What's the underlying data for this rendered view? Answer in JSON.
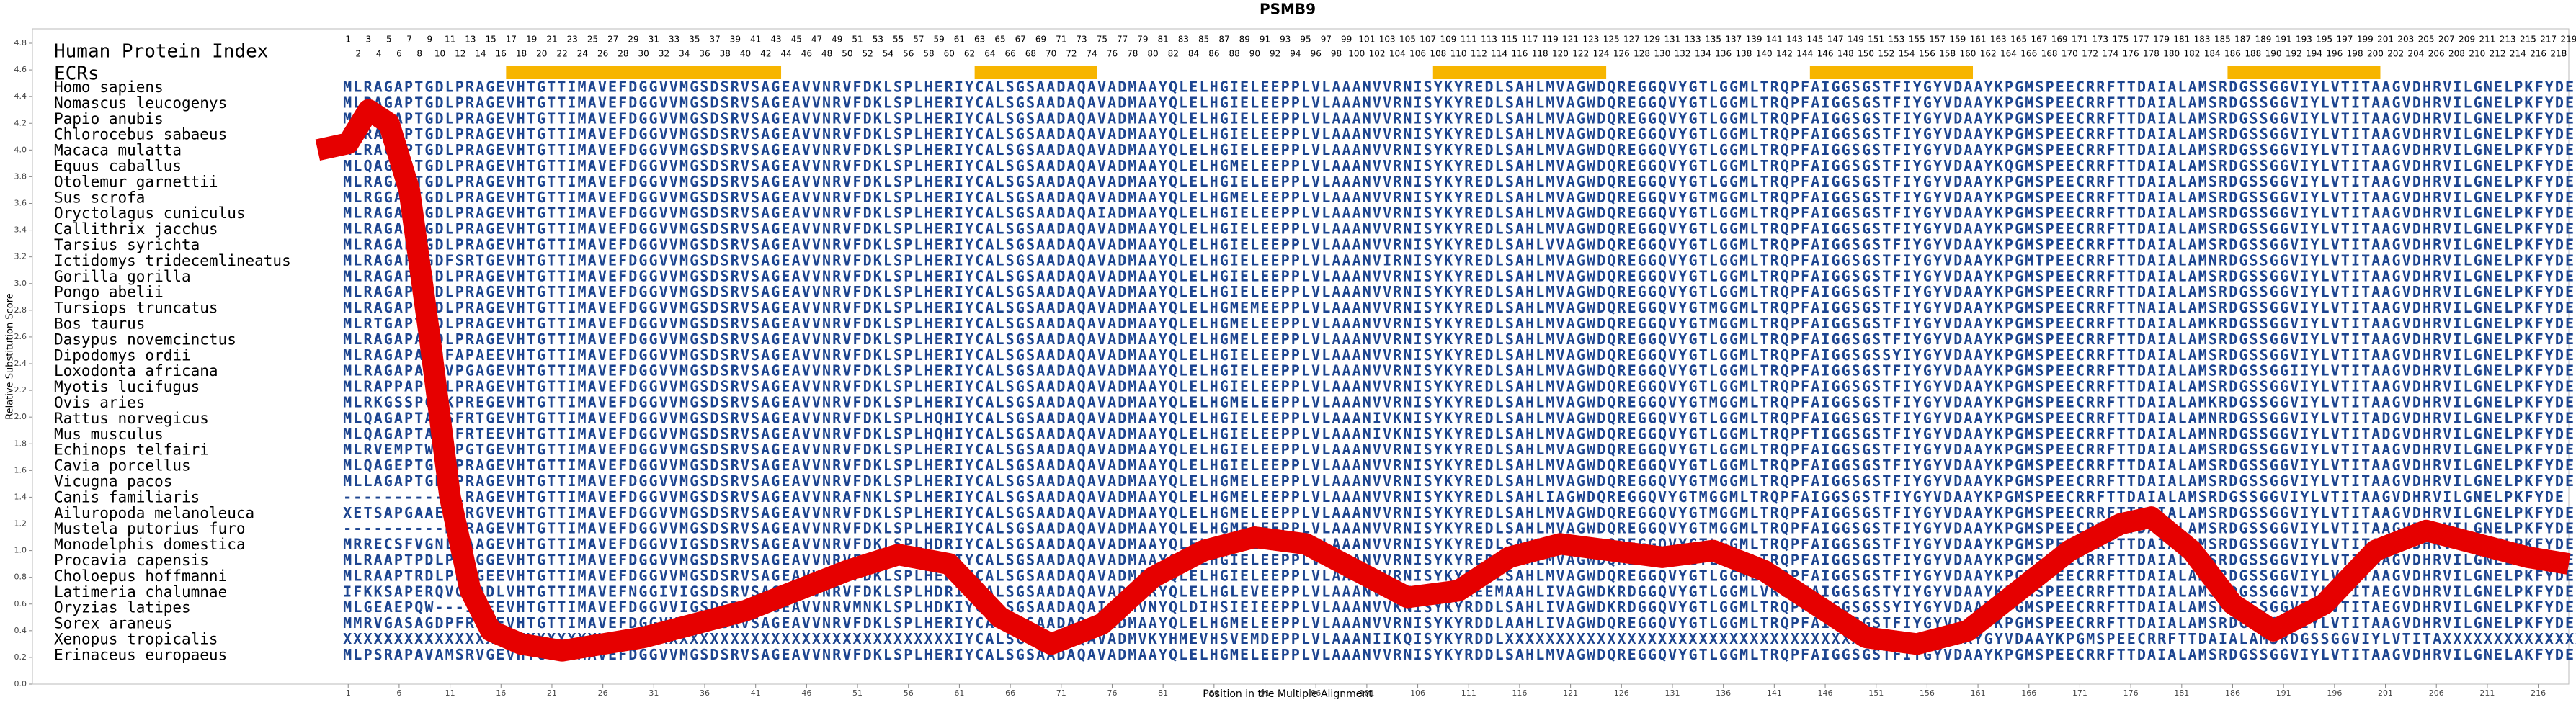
{
  "chart_data": {
    "type": "line",
    "title": "PSMB9",
    "xlabel": "Position in the Multiple Alignment",
    "ylabel": "Relative Substitution Score",
    "index_label": "Human Protein Index",
    "ecr_label": "ECRs",
    "xlim": [
      -30,
      219
    ],
    "ylim": [
      0,
      4.8
    ],
    "xticks": [
      1,
      6,
      11,
      16,
      21,
      26,
      31,
      36,
      41,
      46,
      51,
      56,
      61,
      66,
      71,
      76,
      81,
      86,
      91,
      96,
      101,
      106,
      111,
      116,
      121,
      126,
      131,
      136,
      141,
      146,
      151,
      156,
      161,
      166,
      171,
      176,
      181,
      186,
      191,
      196,
      201,
      206,
      211,
      216
    ],
    "yticks": [
      {
        "value": 0,
        "label": "0.0"
      },
      0.2,
      0.4,
      0.6,
      0.8,
      {
        "value": 1,
        "label": "1.0"
      },
      1.2,
      1.4,
      1.6,
      1.8,
      {
        "value": 2,
        "label": "2.0"
      },
      2.2,
      2.4,
      2.6,
      2.8,
      {
        "value": 3,
        "label": "3.0"
      },
      3.2,
      3.4,
      3.6,
      3.8,
      {
        "value": 4,
        "label": "4.0"
      },
      4.2,
      4.4,
      4.6,
      4.8
    ],
    "human_protein_index": [
      1,
      2,
      3,
      4,
      5,
      6,
      7,
      8,
      9,
      10,
      11,
      12,
      13,
      14,
      15,
      16,
      17,
      18,
      19,
      20,
      21,
      22,
      23,
      24,
      25,
      26,
      27,
      28,
      29,
      30,
      31,
      32,
      33,
      34,
      35,
      36,
      37,
      38,
      39,
      40,
      41,
      42,
      43,
      44,
      45,
      46,
      47,
      48,
      49,
      50,
      51,
      52,
      53,
      54,
      55,
      56,
      57,
      58,
      59,
      60,
      61,
      62,
      63,
      64,
      65,
      66,
      67,
      68,
      69,
      70,
      71,
      72,
      73,
      74,
      75,
      76,
      77,
      78,
      79,
      80,
      81,
      82,
      83,
      84,
      85,
      86,
      87,
      88,
      89,
      90,
      91,
      92,
      93,
      94,
      95,
      96,
      97,
      98,
      99,
      100,
      101,
      102,
      103,
      104,
      105,
      106,
      107,
      108,
      109,
      110,
      111,
      112,
      113,
      114,
      115,
      116,
      117,
      118,
      119,
      120,
      121,
      122,
      123,
      124,
      125,
      126,
      127,
      128,
      129,
      130,
      131,
      132,
      133,
      134,
      135,
      136,
      137,
      138,
      139,
      140,
      141,
      142,
      143,
      144,
      145,
      146,
      147,
      148,
      149,
      150,
      151,
      152,
      153,
      154,
      155,
      156,
      157,
      158,
      159,
      160,
      161,
      162,
      163,
      164,
      165,
      166,
      167,
      168,
      169,
      170,
      171,
      172,
      173,
      174,
      175,
      176,
      177,
      178,
      179,
      180,
      181,
      182,
      183,
      184,
      185,
      186,
      187,
      188,
      189,
      190,
      191,
      192,
      193,
      194,
      195,
      196,
      197,
      198,
      199,
      200,
      201,
      202,
      203,
      204,
      205,
      206,
      207,
      208,
      209,
      210,
      211,
      212,
      213,
      214,
      215,
      216,
      217,
      218,
      219
    ],
    "ecrs": [
      [
        17,
        43
      ],
      [
        63,
        74
      ],
      [
        108,
        124
      ],
      [
        145,
        160
      ],
      [
        186,
        200
      ]
    ],
    "ecr_color": "#f7b500",
    "species": [
      "Homo sapiens",
      "Nomascus leucogenys",
      "Papio anubis",
      "Chlorocebus sabaeus",
      "Macaca mulatta",
      "Equus caballus",
      "Otolemur garnettii",
      "Sus scrofa",
      "Oryctolagus cuniculus",
      "Callithrix jacchus",
      "Tarsius syrichta",
      "Ictidomys tridecemlineatus",
      "Gorilla gorilla",
      "Pongo abelii",
      "Tursiops truncatus",
      "Bos taurus",
      "Dasypus novemcinctus",
      "Dipodomys ordii",
      "Loxodonta africana",
      "Myotis lucifugus",
      "Ovis aries",
      "Rattus norvegicus",
      "Mus musculus",
      "Echinops telfairi",
      "Cavia porcellus",
      "Vicugna pacos",
      "Canis familiaris",
      "Ailuropoda melanoleuca",
      "Mustela putorius furo",
      "Monodelphis domestica",
      "Procavia capensis",
      "Choloepus hoffmanni",
      "Latimeria chalumnae",
      "Oryzias latipes",
      "Sorex araneus",
      "Xenopus tropicalis",
      "Erinaceus europaeus"
    ],
    "sequence_color": "#1d4590",
    "sequences": [
      "MLRAGAPTGDLPRAGEVHTGTTIMAVEFDGGVVMGSDSRVSAGEAVVNRVFDKLSPLHERIYCALSGSAADAQAVADMAAYQLELHGIELEEPPLVLAAANVVRNISYKYREDLSAHLMVAGWDQREGGQVYGTLGGMLTRQPFAIGGSGSTFIYGYVDAAYKPGMSPEECRRFTTDAIALAMSRDGSSGGVIYLVTITAAGVDHRVILGNELPKFYDE",
      "MLRAGAPTGDLPRAGEVHTGTTIMAVEFDGGVVMGSDSRVSAGEAVVNRVFDKLSPLHERIYCALSGSAADAQAVADMAAYQLELHGIELEEPPLVLAAANVVRNISYKYREDLSAHLMVAGWDQREGGQVYGTLGGMLTRQPFAIGGSGSTFIYGYVDAAYKPGMSPEECRRFTTDAIALAMSRDGSSGGVIYLVTITAAGVDHRVILGNELPKFYDE",
      "MLRAGAPTGDLPRAGEVHTGTTIMAVEFDGGVVMGSDSRVSAGEAVVNRVFDKLSPLHERIYCALSGSAADAQAVADMAAYQLELHGIELEEPPLVLAAANVVRNISYKYREDLSAHLMVAGWDQREGGQVYGTLGGMLTRQPFAIGGSGSTFIYGYVDAAYKPGMSPEECRRFTTDAIALAMSRDGSSGGVIYLVTITAAGVDHRVILGNELPKFYDE",
      "MLRAGAPTGDLPRAGEVHTGTTIMAVEFDGGVVMGSDSRVSAGEAVVNRVFDKLSPLHERIYCALSGSAADAQAVADMAAYQLELHGIELEEPPLVLAAANVVRNISYKYREDLSAHLMVAGWDQREGGQVYGTLGGMLTRQPFAIGGSGSTFIYGYVDAAYKPGMSPEECRRFTTDAIALAMSRDGSSGGVIYLVTITAAGVDHRVILGNELPKFYDE",
      "MLRAGAPTGDLPRAGEVHTGTTIMAVEFDGGVVMGSDSRVSAGEAVVNRVFDKLSPLHERIYCALSGSAADAQAVADMAAYQLELHGIELEEPPLVLAAANVVRNISYKYREDLSAHLMVAGWDQREGGQVYGTLGGMLTRQPFAIGGSGSTFIYGYVDAAYKPGMSPEECRRFTTDAIALAMSRDGSSGGVIYLVTITAAGVDHRVILGNELPKFYDE",
      "MLQAGAPTGDLPRAGEVHTGTTIMAVEFDGGVVMGSDSRVSAGEAVVNRVFDKLSPLHERIYCALSGSAADAQAVADMAAYQLELHGMELEEPPLVLAAANVVRNISYKYREDLSAHLMVAGWDQREGGQVYGTLGGMLTRQPFAIGGSGSTFIYGYVDAAYKQGMSPEECRRFTTDAIALAMSRDGSSGGVIYLVTITAAGVDHRVILGNELPKFYDE",
      "MLRAGAPTGDLPRAGEVHTGTTIMAVEFDGGVVMGSDSRVSAGEAVVNRVFDKLSPLHERIYCALSGSAADAQAVADMAAYQLELHGIELEEPPLVLAAANVVRNISYKYREDLSAHLMVAGWDQREGGQVYGTLGGMLTRQPFAIGGSGSTFIYGYVDAAYKPGMSPEECRRFTTDAIALAMSRDGSSGGVIYLVTITAAGVDHRVILGNELPKFYDE",
      "MLRGGAPTGDLPRAGEVHTGTTIMAVEFDGGVVMGSDSRVSAGEAVVNRVFDKLSPLHERIYCALSGSAADAQAVADMAAYQLELHGMELEEPPLVLAAANVVRNISYKYREDLSAHLMVAGWDQREGGQVYGTMGGMLTRQPFAIGGSGSTFIYGYVDAAYKPGMSPEECRRFTTDAIALAMSRDGSSGGVIYLVTITAAGVDHRVILGNELPKFYDE",
      "MLRAGAPAGDLPRAGEVHTGTTIMAVEFDGGVVMGSDSRVSAGEAVVNRVFDKLSPLHERIYCALSGSAADAQAIADMAAYQLELHGIELEEPPLVLAAANVVRNISYKYREDLSAHLMVAGWDQREGGQVYGTLGGMLTRQPFAIGGSGSTFIYGYVDAAYKPGMSPEECRRFTTDAIALAMSRDGSSGGVIYLVTITAAGVDHRVILGNELPKFYDE",
      "MLRAGAPTGDLPRAGEVHTGTTIMAVEFDGGVVMGSDSRVSAGEAVVNRVFDKLSPLHERIYCALSGSAADAQAVADMAAYQLELHGIELEEPPLVLAAANVVRNISYKYREDLSAHLMVAGWDQREGGQVYGTLGGMLTRQPFAIGGSGSTFIYGYVDAAYKPGMSPEECRRFTTDAIALAMSRDGSSGGVIYLVTITAAGVDHRVILGNELPKFYDE",
      "MLRAGAPTGDLPRAGEVHTGTTIMAVEFDGGVVMGSDSRVSAGEAVVNRVFDKLSPLHERIYCALSGSAADAQAVADMAAYQLELHGIELEEPPLVLAAANVVRNISYKYREDLSAHLVVAGWDQREGGQVYGTLGGMLTRQPFAIGGSGSTFIYGYVDAAYKPGMSPEECRRFTTDAIALAMSRDGSSGGVIYLVTITAAGVDHRVILGNELPKFYDE",
      "MLRAGAPTGDFSRTGEVHTGTTIMAVEFDGGVVMGSDSRVSAGEAVVNRVFDKLSPLHERIYCALSGSAADAQAVADMAAYQLELHGIELEEPPLVLAAANVIRNISYKYREDLSAHLMVAGWDQREGGQVYGTLGGMLTRQPFAIGGSGSTFIYGYVDAAYKPGMTPEECRRFTTDAIALAMNRDGSSGGVIYLVTITAAGVDHRVILGNELPKFYDE",
      "MLRAGAPTGDLPRAGEVHTGTTIMAVEFDGGVVMGSDSRVSAGEAVVNRVFDKLSPLHERIYCALSGSAADAQAVADMAAYQLELHGIELEEPPLVLAAANVVRNISYKYREDLSAHLMVAGWDQREGGQVYGTLGGMLTRQPFAIGGSGSTFIYGYVDAAYKPGMSPEECRRFTTDAIALAMSRDGSSGGVIYLVTITAAGVDHRVILGNELPKFYDE",
      "MLRAGAPTGDLPRAGEVHTGTTIMAVEFDGGVVMGSDSRVSAGEAVVNRVFDKLSPLHERIYCALSGSAADAQAVADMAAYQLELHGIELEEPPLVLAAANVVRNISYKYREDLSAHLMVAGWDQREGGQVYGTLGGMLTRQPFAIGGSGSTFIYGYVDAAYKPGMSPEECRRFTTDAIALAMSRDGSSGGVIYLVTITAAGVDHRVILGNELPKFYDE",
      "MLRAGAPTGDLPRAGEVHTGTTIMAVEFDGGVVMGSDSRVSAGEAVVNRVFDKLSPLHERIYCALSGSAADAQAVADMAAYQLELHGMEMEEPPLVLAAANVVRNISYKYREDLSAHLMVAGWDQREGGQVYGTMGGMLTRQPFAIGGSGSTFIYGYVDAAYKPGMSPEECRRFTTNAIALAMSRDGSSGGVIYLVTITAAGVDHRVILGNELPKFYDE",
      "MLRTGAPTGDLPRAGEVHTGTTIMAVEFDGGVVMGSDSRVSAGEAVVNRVFDKLSPLHERIYCALSGSAADAQAVADMAAYQLELHGMELEEPPLVLAAANVVRNISYKYREDLSAHLMVAGWDQREGGQVYGTMGGMLTRQPFAIGGSGSTFIYGYVDAAYKPGMSPEECRRFTTDAIALAMKRDGSSGGVIYLVTITAAGVDHRVILGNELPKFYDE",
      "MLRAGAPAGDLPRAGEVHTGTTIMAVEFDGGVVMGSDSRVSAGEAVVNRVFDKLSPLHERIYCALSGSAADAQAVADMAAYQLELHGMELEEPPLVLAAANVVRNISYKYREDLSAHLMVAGWDQREGGQVYGTLGGMLTRQPFAIGGSGSTFIYGYVDAAYKPGMSPEECRRFTTDAIALAMSRDGSSGGVIYLVTITAAGVDHRVILGNELPKFYDE",
      "MLRAGAPAWDFAPAEEVHTGTTIMAVEFDGGVVMGSDSRVSAGEAVVNRVFDKLSPLHERIYCALSGSAADAQAVADMAAYQLELHGIELEEPPLVLAAANVVRNISYKYREDLSAHLMVAGWDQREGGQVYGTLGGMLTRQPFAIGGSGSSYIYGYVDAAYKPGMSPEECRRFTTDAIALAMSRDGSSGGVIYLVTITAAGVDHRVILGNELPKFYDE",
      "MLRAGAPAGDVPGAGEVHTGTTIMAVEFDGGVVMGSDSRVSAGEAVVNRVFDKLSPLHERIYCALSGSAADAQAVADMAAYQLELHGIELEEPPLVLAAANVVRNISYKYREDLSAHLMVAGWDQREGGQVYGTLGGMLTRQPFAIGGSGSTFIYGYVDAAYKPGMSPEECRRFTTDAIALAMSRDGSSGGIIYLVTITAAGVDHRVILGNELPKFYDE",
      "MLRAPPAPGDLPRAGEVHTGTTIMAVEFDGGVVMGSDSRVSAGEAVVNRVFDKLSPLHERIYCALSGSAADAQAVADMAAYQLELHGIELEEPPLVLAAANVVRNISYKYREDLSAHLMVAGWDQREGGQVYGTLGGMLTRQPFAIGGSGSTFIYGYVDAAYKPGMSPEECRRFTTDAIALAMSRDGSSGGVIYLVTITAAGVDHRVILGNELPKFYDE",
      "MLRKGSSPGQKPREGEVHTGTTIMAVEFDGGVVMGSDSRVSAGEAVVNRVFDKLSPLHERIYCALSGSAADAQAVADMAAYQLELHGMELEEPPLVLAAANVVRNISYKYREDLSAHLMVAGWDQREGGQVYGTMGGMLTRQPFAIGGSGSTFIYGYVDAAYKPGMSPEECRRFTTDAIALAMKRDGSSGGVIYLVTITAAGVDHRVILGNELPKFYDE",
      "MLQAGAPTAGSFRTGEVHTGTTIMAVEFDGGVVMGSDSRVSAGEAVVNRVFDKLSPLHQHIYCALSGSAADAQAVADMAAYQLELHGIELEEPPLVLAAANIVKNISYKYREDLSAHLMVAGWDQREGGQVYGTLGGMLTRQPFAIGGSGSTFIYGYVDAAYKPGMSPEECRRFTTDAIALAMNRDGSSGGVIYLVTITADGVDHRVILGNELPKFYDE",
      "MLQAGAPTAGSFRTEEVHTGTTIMAVEFDGGVVMGSDSRVSAGEAVVNRVFDKLSPLHQHIYCALSGSAADAQAVADMAAYQLELHGIELEEPPLVLAAANIVKNISYKYREDLSAHLMVAGWDQREGGQVYGTLGGMLTRQPFTIGGSGSTFIYGYVDAAYKPGMSPEECRRFTTDAIALAMNRDGSSGGVIYLVTITADGVDHRVILGNELPKFYDE",
      "MLRVEMPTWELPGTGEVHTGTTIMAVEFDGGVVMGSDSRVSAGEAVVNRVFDKLSPLHERIYCALSGSAADAQAVADMAAYQLELHGIELEEPPLVLAAANVVRNISYKYREDLSAHLMVAGWDQREGGQVYGTLGGMLTRQPFAIGGSGSTFIYGYVDAAYKPGMSPEECRRFTTDAIALAMSRDGSSGGVIYLVTITAAGVDHRVILGNELPKFYDE",
      "MLQAGEPTGDLPRAGEVHTGTTIMAVEFDGGVVMGSDSRVSAGEAVVNRVFDKLSPLHERIYCALSGSAADAQAVADMAAYQLELHGIELEEPPLVLAAANVVRNISYKYREDLSAHLMVAGWDQREGGQVYGTLGGMLTRQPFAIGGSGSTFIYGYVDAAYKPGMSPEECRRFTTDAIALAMSRDGSSGGVIYLVTITAAGVDHRVILGNELPKFYDE",
      "MLLAGAPTGDLPRAGEVHTGTTIMAVEFDGGVVMGSDSRVSAGEAVVNRVFDKLSPLHERIYCALSGSAADAQAVADMAAYQLELHGMELEEPPLVLAAANVVRNISYKYREDLSAHLMVAGWDQREGGQVYGTMGGMLTRQPFAIGGSGSTFIYGYVDAAYKPGMSPEECRRFTTDAIALAMSRDGSSGGVIYLVTITAAGVDHRVILGNELPKFYDE",
      "----------MLRAGEVHTGTTIMAVEFDGGVVMGSDSRVSAGEAVVNRAFNKLSPLHERIYCALSGSAADAQAVADMAAYQLELHGMELEEPPLVLAAANVVRNISYKYREDLSAHLIAGWDQREGGQVYGTMGGMLTRQPFAIGGSGSTFIYGYVDAAYKPGMSPEECRRFTTDAIALAMSRDGSSGGVIYLVTITAAGVDHRVILGNELPKFYDE",
      "XETSAPGAAEMLRGVEVHTGTTIMAVEFDGGVVMGSDSRVSAGEAVVNRVFDKLSPLHERIYCALSGSAADAQAVADMAAYQLELHGMELEEPPLVLAAANVVRNISYKYREDLSAHLMVAGWDQREGGQVYGTMGGMLTRQPFAIGGSGSTFIYGYVDAAYKPGMSPEECRRFTTDAIALAMSRDGSSGGVIYLVTITAAGVDHRVILGNELPKFYDE",
      "----------MLRAGEVHTGTTIMAVEFDGGVVMGSDSRVSAGEAVVNRVFDKLSPLHERIYCALSGSAADAQAVADMAAYQLELHGMELEEPPLVLAAANVVRNISYKYREDLSAHLMVAGWDQREGGQVYGTMGGMLTRQPFAIGGSGSTFIYGYVDAAYKPGMSPEECRRFTTDAIALAMSRDGSSGGVIYLVTITAAGVDHRVILGNELPKFYDE",
      "MRRECSFVGNLPAAGEVHTGTTIMAVEFDGGVVIGSDSRVSAGEAVVNRVFDKLSPLHDRIYCALSGSAADAQAVADMAAYQLELHGMELEEPPLVLAAANVVRNISYKYREDLSAHLIVAGWDQREGGQVYGTLGGMLTRQPFAIGGSGSTFIYGYVDAAYKPGMSPEECRRFTTDAIALAMSRDGSSGGVIYLVTITAEGVDHRVILGNELPKFYDE",
      "MLRAAPTPDLPRAGGEVHTGTTIMAVEFDGGVVMGSDSRVSAGEAVVNRVFDKLSPLHERIYCALSGSAADAQAVADMAAYQLELHGIELEEPPLVLAAANVVRNISYKYREDLSAHLMVAGWDQREGGQVYGTLGGMLTRQPFAIGGSGSTFIYGYVDAAYKPGMSPEECRRFTTDAIALAMSRDGSSGGVIYLVTITAAGVDHRVILGNELPKFYDE",
      "MLRAAPTRDLPRAGEEVHTGTTIMAVEFDGGVVMGSDSRVSAGEAVVNRVFDKLSPLHERIYCALSGSAADAQAVADMAAYQLELHGIELEEPPLVLAAANVVRNISYKYREDLSAHLMVAGWDQREGGQVYGTLGGMLTRQPFAIGGSGSTFIYGYVDAAYKPGMSPEECRRFTTDAIALAMSRDGSSGGVIYLVTITAAGVDHRVILGNELPKFYDE",
      "IFKKSAPERQVGHDDLVHTGTTIMAVEFNGGIVIGSDSRVSAGEAVVNRVFDKLSPLHDRIYCALSGSAADAQAVADMVRYQLELHGLEVEEPPLVLAAANVVKNISYKYKEEMAAHLIVAGWDKRDGGQVYGTLGGMLVRQPFAIGGSGSTYIYGYVDAAYKPGMSPEECRRFTTDAIALAMSRDGSSGGVIYLVTITAEGVDHRVILGNELPKFYDE",
      "MLGEAEPQW---ISEEVHTGTTIMAVEFDGGVVIGSDSRVSAGEAVVNRVMNKLSPLHDKIYCALSGSAADAQAIAEMVNYQLDIHSIEIEEPPLVLAAANVVKNISYKYRDDLSAHLIVAGWDKRDGGQVYGTLGGMLTRQPFAIGGSGSSYIYGYVDAAYKPGMSPEECRRFTTDAIALAMSRDGSSGGVIYLVTITAEGVDHRVILGNELPKFYDE",
      "MMRVGASAGDPFRFGEVHTGTTIMAVEFDGGVVMGSDSRVSAGEAVVNRVFDKLSPLHERIYCALSGSAADAQAVADMAAYQLELHGMELEEPPLVLAAANVVRNISYKYRDDLAAHLIVAGWDQREGGQVYGTLGGMLTRQPFAIGGSGSTFIYGYVDAAYKPGMSPEECRRFTTDAIALAMSRDGSSGGVIYLVTITAAGVDHRVILGNELPKFYDE",
      "XXXXXXXXXXXXXXXXXXXXXXXXXXXXXXXXXXXXXXXXXXXXXXXXXXXXXXXXXXXXIYCALSGSAADAQAVADMVKYHMEVHSVEMDEPPLVLAAANIIKQISYKYRDDLXXXXXXXXXXXXXXXXXXXXXXXXXXXXXXXXXXXXXXXXXXXXXXYGYVDAAYKPGMSPEECRRFTTDAIALAMSRDGSSGGVIYLVTITAXXXXXXXXXXXXXXXXX",
      "MLPSRAPAVAMSRVGEVHTGTTIMAVEFDGGVVMGSDSRVSAGEAVVNRVFDKLSPLHERIYCALSGSAADAQAVADMAAYQLELHGMELEEPPLVLAAANVVRNISYKYRDDLSAHLMVAGWDQREGGQVYGTLGGMLTRQPFAIGGSGSTFIYGYVDAAYKPGMSPEECRRFTTDAIALAMSRDGSSGGVIYLVTITAAGVDHRVILGNELAKFYDE"
    ],
    "series": [
      {
        "color": "#e60000",
        "x": [
          -2,
          1,
          3,
          5,
          7,
          9,
          11,
          13,
          15,
          18,
          22,
          26,
          30,
          35,
          40,
          45,
          50,
          55,
          60,
          65,
          70,
          75,
          80,
          85,
          90,
          95,
          100,
          105,
          110,
          115,
          120,
          125,
          130,
          135,
          140,
          145,
          150,
          155,
          160,
          165,
          170,
          175,
          178,
          182,
          186,
          190,
          195,
          200,
          205,
          210,
          215,
          219
        ],
        "values": [
          4.0,
          4.05,
          4.3,
          4.2,
          3.7,
          2.6,
          1.4,
          0.7,
          0.4,
          0.3,
          0.25,
          0.3,
          0.35,
          0.45,
          0.55,
          0.7,
          0.85,
          0.97,
          0.9,
          0.5,
          0.3,
          0.45,
          0.8,
          1.0,
          1.1,
          1.05,
          0.85,
          0.65,
          0.7,
          0.95,
          1.05,
          1.0,
          0.95,
          1.0,
          0.85,
          0.6,
          0.35,
          0.3,
          0.4,
          0.7,
          1.0,
          1.2,
          1.25,
          1.0,
          0.6,
          0.4,
          0.6,
          1.0,
          1.15,
          1.05,
          0.95,
          0.9
        ]
      }
    ]
  }
}
